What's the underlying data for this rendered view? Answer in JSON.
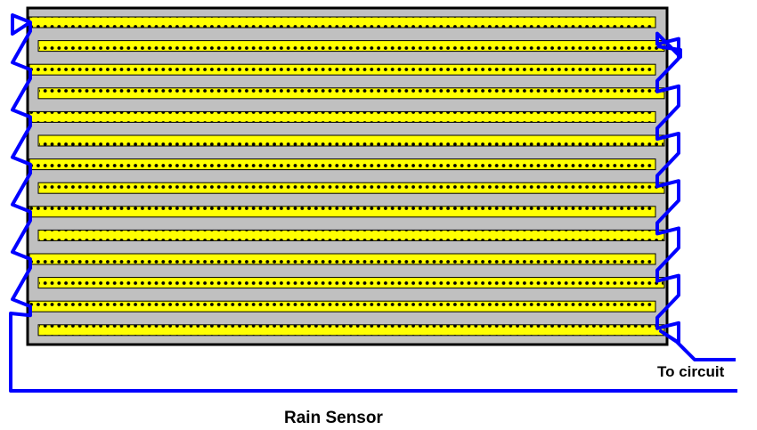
{
  "labels": {
    "connector": "To circuit",
    "caption": "Rain Sensor"
  },
  "board": {
    "strip_count": 14,
    "colors": {
      "board_background": "#c0c0c0",
      "board_border": "#000000",
      "strip_fill": "#ffff00",
      "strip_border": "#000000",
      "dot": "#000000",
      "wire": "#0000ff"
    }
  }
}
